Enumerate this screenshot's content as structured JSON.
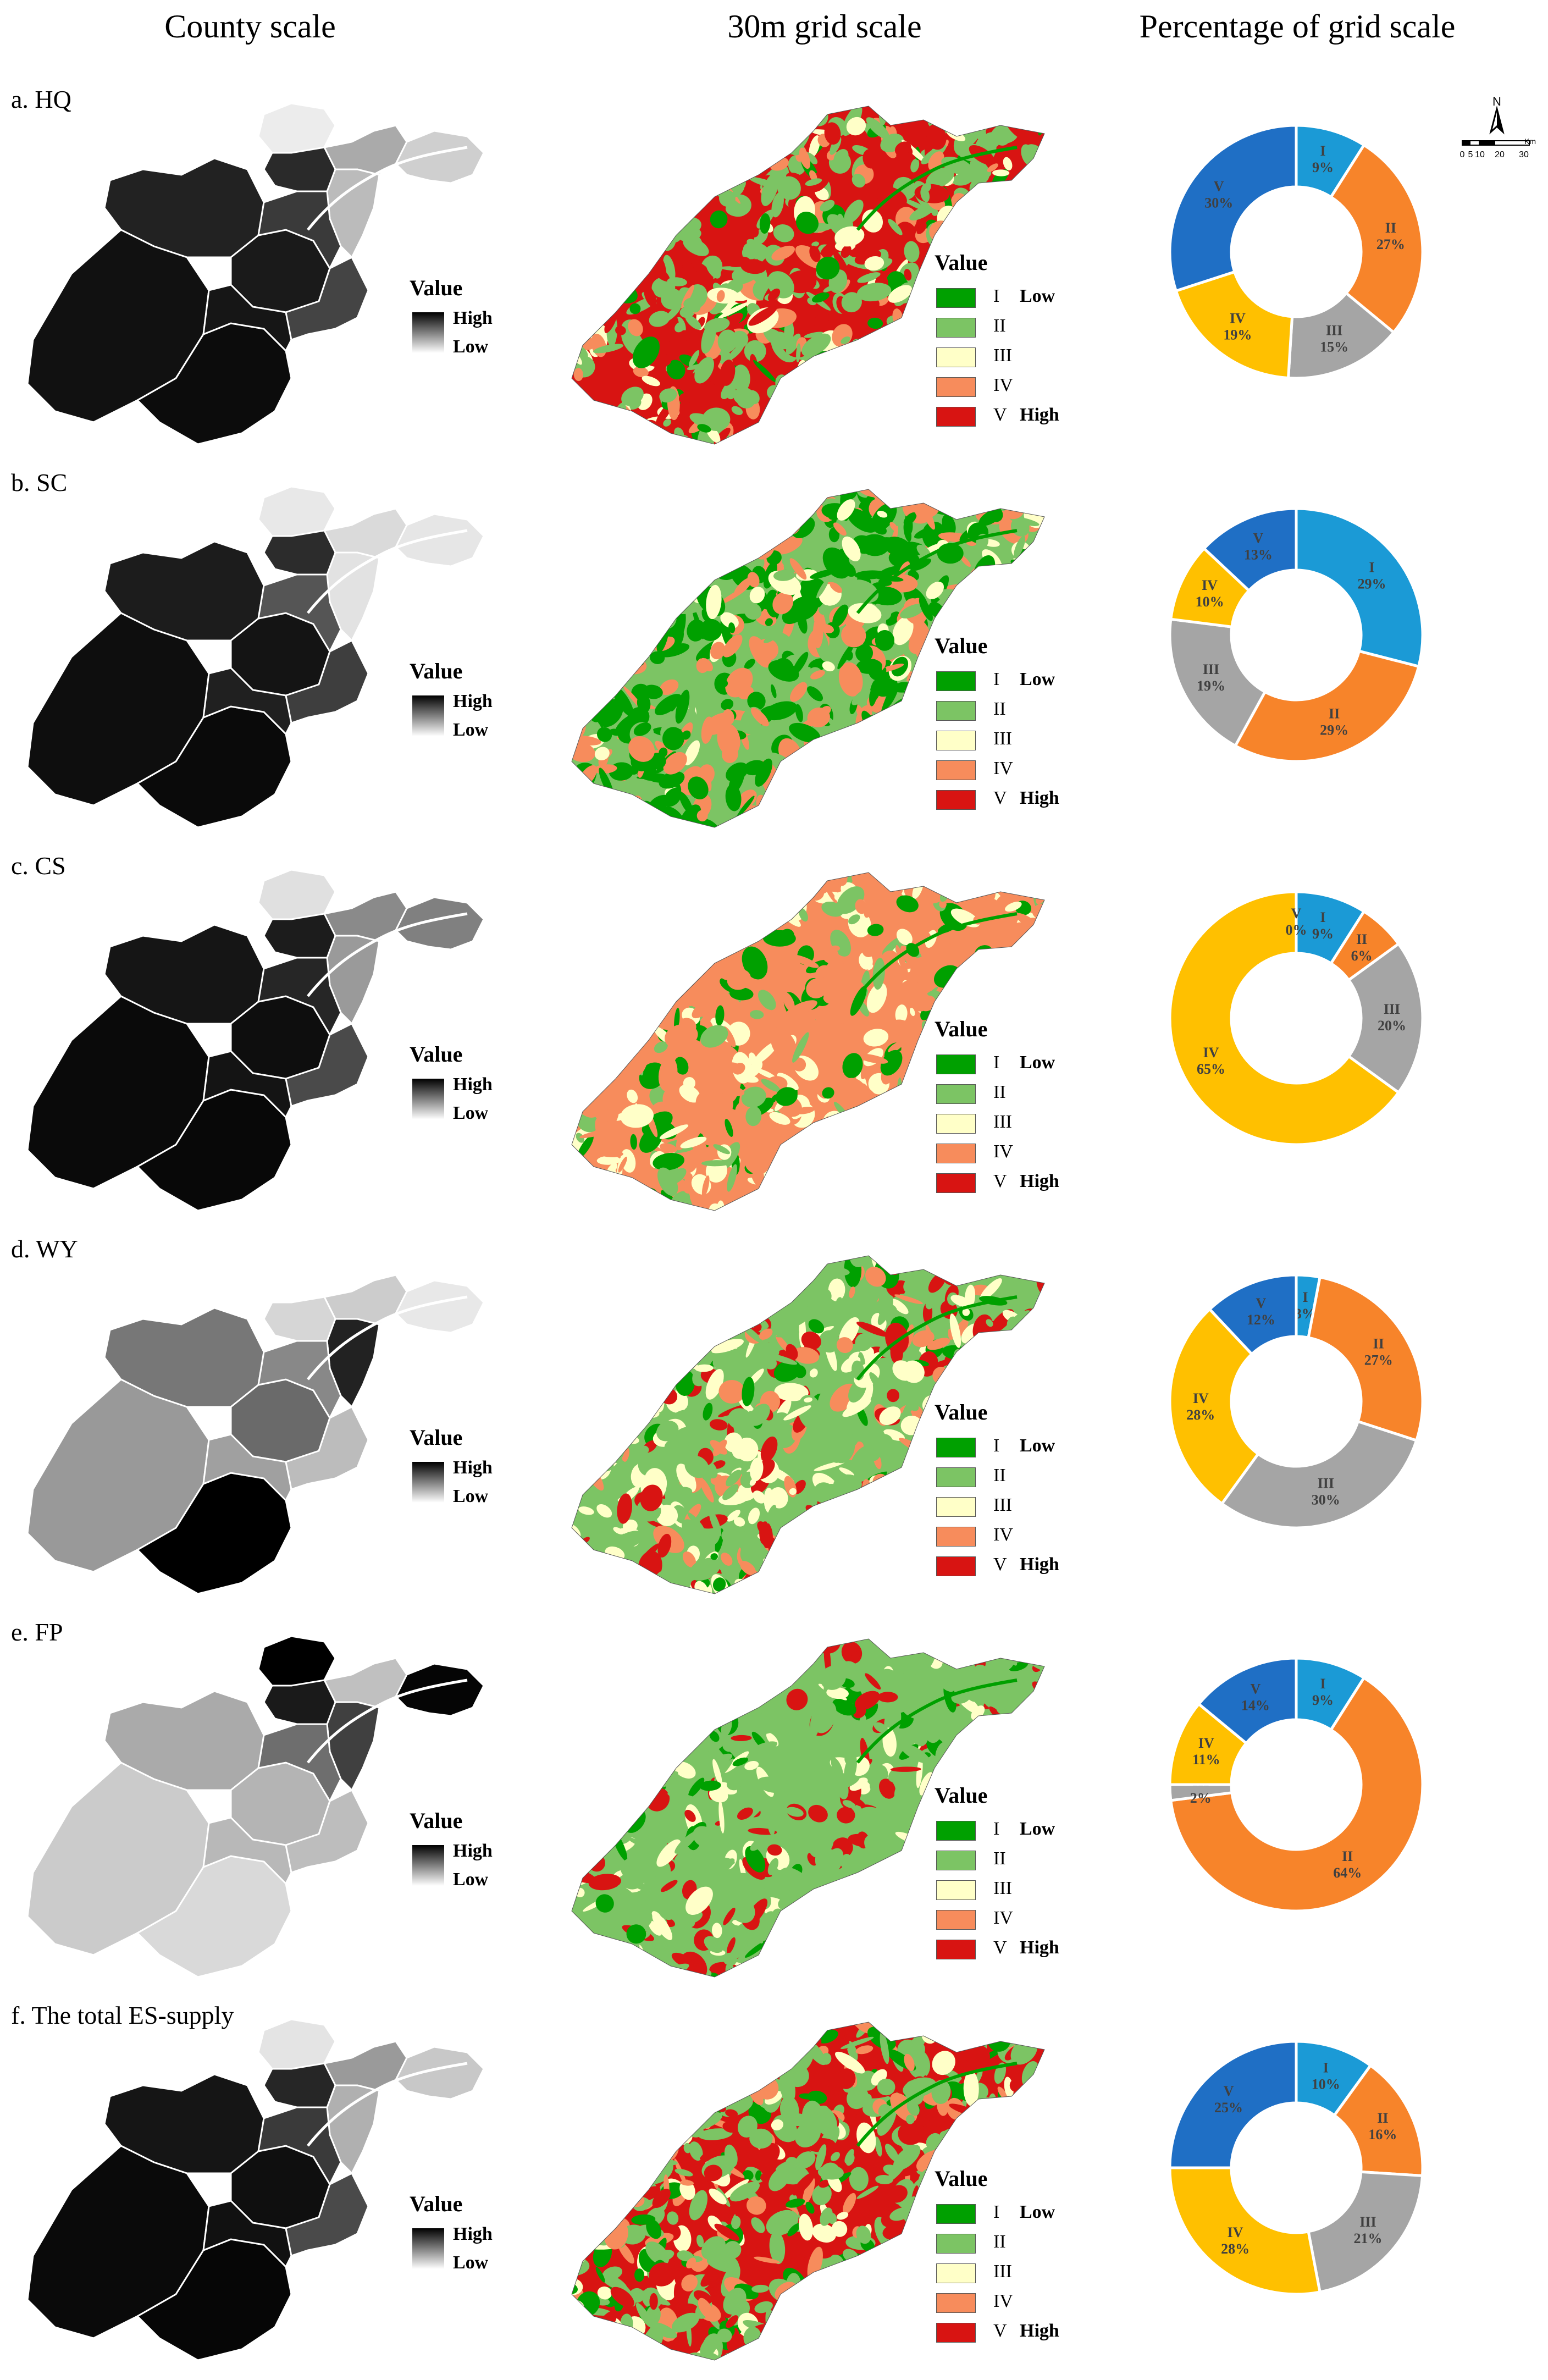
{
  "headers": {
    "county": "County scale",
    "grid": "30m grid scale",
    "percentage": "Percentage of grid scale"
  },
  "legend": {
    "value_title": "Value",
    "high": "High",
    "low": "Low",
    "class_labels": [
      "I",
      "II",
      "III",
      "IV",
      "V"
    ],
    "class_levels": [
      "Low",
      "",
      "",
      "",
      "High"
    ],
    "class_colors": [
      "#00a000",
      "#7cc464",
      "#ffffc8",
      "#f78c5c",
      "#d81412"
    ]
  },
  "scale_bar": {
    "north": "N",
    "ticks": [
      "0",
      "5",
      "10",
      "20",
      "30"
    ],
    "unit": "Km"
  },
  "donut_colors": {
    "I": "#1b9ad6",
    "II": "#f7842a",
    "III": "#a5a5a5",
    "IV": "#ffc000",
    "V": "#1f6fc5"
  },
  "rows": [
    {
      "label": "a. HQ",
      "county_shades": [
        "#ececec",
        "#aaaaaa",
        "#bbbbbb",
        "#cfcfcf",
        "#222222",
        "#1a1a1a",
        "#111111",
        "#0c0c0c",
        "#161616",
        "#3a3a3a",
        "#2a2a2a",
        "#444444"
      ],
      "grid_scheme": "mixed_high"
    },
    {
      "label": "b. SC",
      "county_shades": [
        "#e8e8e8",
        "#dadada",
        "#e2e2e2",
        "#e6e6e6",
        "#1c1c1c",
        "#141414",
        "#0e0e0e",
        "#0a0a0a",
        "#202020",
        "#555555",
        "#2c2c2c",
        "#3e3e3e"
      ],
      "grid_scheme": "green_orange"
    },
    {
      "label": "c. CS",
      "county_shades": [
        "#e0e0e0",
        "#8a8a8a",
        "#9a9a9a",
        "#808080",
        "#151515",
        "#0e0e0e",
        "#0a0a0a",
        "#080808",
        "#141414",
        "#262626",
        "#1c1c1c",
        "#4a4a4a"
      ],
      "grid_scheme": "orange"
    },
    {
      "label": "d. WY",
      "county_shades": [
        "#ffffff",
        "#cccccc",
        "#222222",
        "#e8e8e8",
        "#777777",
        "#6a6a6a",
        "#999999",
        "#000000",
        "#a0a0a0",
        "#888888",
        "#d6d6d6",
        "#bcbcbc"
      ],
      "grid_scheme": "mixed_green"
    },
    {
      "label": "e. FP",
      "county_shades": [
        "#000000",
        "#c0c0c0",
        "#404040",
        "#050505",
        "#aaaaaa",
        "#b4b4b4",
        "#cbcbcb",
        "#d9d9d9",
        "#b8b8b8",
        "#6e6e6e",
        "#1a1a1a",
        "#bdbdbd"
      ],
      "grid_scheme": "green_red"
    },
    {
      "label": "f. The total ES-supply",
      "county_shades": [
        "#e4e4e4",
        "#9a9a9a",
        "#b0b0b0",
        "#c8c8c8",
        "#151515",
        "#0f0f0f",
        "#0a0a0a",
        "#060606",
        "#111111",
        "#3a3a3a",
        "#262626",
        "#4a4a4a"
      ],
      "grid_scheme": "mixed_high"
    }
  ],
  "chart_data": [
    {
      "type": "pie",
      "title": "a. HQ",
      "donut": true,
      "categories": [
        "I",
        "II",
        "III",
        "IV",
        "V"
      ],
      "values": [
        9,
        27,
        15,
        19,
        30
      ],
      "labels": [
        "I 9%",
        "II 27%",
        "III 15%",
        "IV 19%",
        "V 30%"
      ]
    },
    {
      "type": "pie",
      "title": "b. SC",
      "donut": true,
      "categories": [
        "I",
        "II",
        "III",
        "IV",
        "V"
      ],
      "values": [
        29,
        29,
        19,
        10,
        13
      ],
      "labels": [
        "I 29%",
        "II 29%",
        "III 19%",
        "IV 10%",
        "V 13%"
      ]
    },
    {
      "type": "pie",
      "title": "c. CS",
      "donut": true,
      "categories": [
        "I",
        "II",
        "III",
        "IV",
        "V"
      ],
      "values": [
        9,
        6,
        20,
        65,
        0
      ],
      "labels": [
        "I 9%",
        "II 6%",
        "III 20%",
        "IV 65%",
        "V 0%"
      ]
    },
    {
      "type": "pie",
      "title": "d. WY",
      "donut": true,
      "categories": [
        "I",
        "II",
        "III",
        "IV",
        "V"
      ],
      "values": [
        3,
        27,
        30,
        28,
        12
      ],
      "labels": [
        "I 3%",
        "II 27%",
        "III 30%",
        "IV 28%",
        "V 12%"
      ]
    },
    {
      "type": "pie",
      "title": "e. FP",
      "donut": true,
      "categories": [
        "I",
        "II",
        "III",
        "IV",
        "V"
      ],
      "values": [
        9,
        64,
        2,
        11,
        14
      ],
      "labels": [
        "I 9%",
        "II 64%",
        "III 2%",
        "IV 11%",
        "V 14%"
      ]
    },
    {
      "type": "pie",
      "title": "f. The total ES-supply",
      "donut": true,
      "categories": [
        "I",
        "II",
        "III",
        "IV",
        "V"
      ],
      "values": [
        10,
        16,
        21,
        28,
        25
      ],
      "labels": [
        "I 10%",
        "II 16%",
        "III 21%",
        "IV 28%",
        "V 25%"
      ]
    }
  ]
}
